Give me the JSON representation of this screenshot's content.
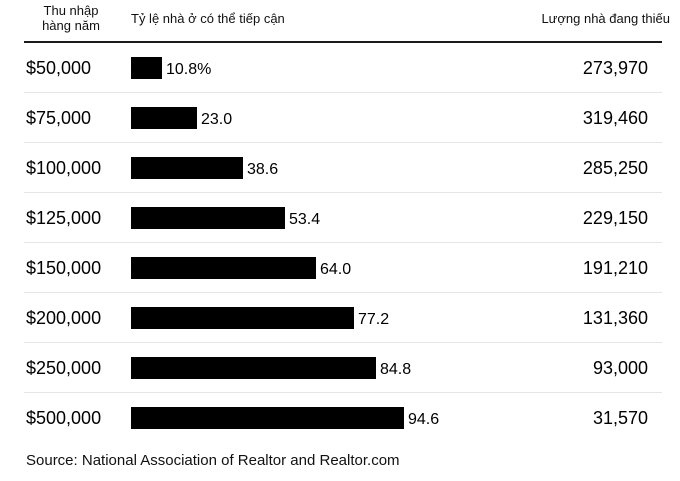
{
  "headers": {
    "income_line1": "Thu nhập",
    "income_line2": "hàng năm",
    "affordability": "Tỷ lệ nhà ở có thể tiếp cận",
    "shortage": "Lượng nhà đang thiếu"
  },
  "chart_data": {
    "type": "bar",
    "orientation": "horizontal",
    "title": "",
    "xlabel": "Tỷ lệ nhà ở có thể tiếp cận",
    "ylabel": "Thu nhập hàng năm",
    "xlim": [
      0,
      100
    ],
    "categories": [
      "$50,000",
      "$75,000",
      "$100,000",
      "$125,000",
      "$150,000",
      "$200,000",
      "$250,000",
      "$500,000"
    ],
    "values": [
      10.8,
      23.0,
      38.6,
      53.4,
      64.0,
      77.2,
      84.8,
      94.6
    ],
    "value_labels": [
      "10.8%",
      "23.0",
      "38.6",
      "53.4",
      "64.0",
      "77.2",
      "84.8",
      "94.6"
    ],
    "shortage_values": [
      "273,970",
      "319,460",
      "285,250",
      "229,150",
      "191,210",
      "131,360",
      "93,000",
      "31,570"
    ],
    "bar_color": "#000000",
    "grid": false,
    "legend": "none"
  },
  "source": "Source: National Association of Realtor and Realtor.com"
}
